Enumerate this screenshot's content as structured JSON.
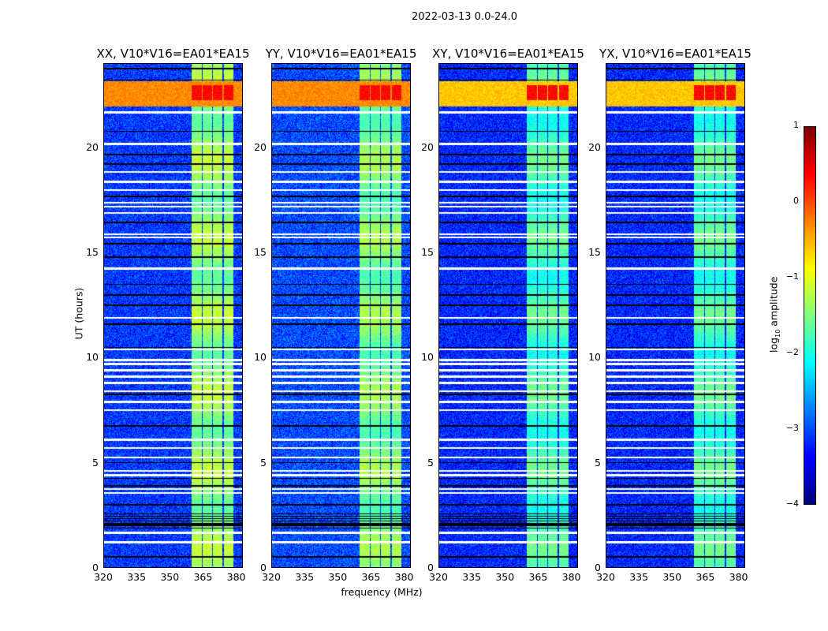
{
  "chart_data": {
    "type": "heatmap",
    "suptitle": "2022-03-13 0.0-24.0",
    "xlabel": "frequency (MHz)",
    "ylabel": "UT (hours)",
    "xlim": [
      320,
      383
    ],
    "ylim": [
      0,
      24
    ],
    "xticks": [
      "320",
      "335",
      "350",
      "365",
      "380"
    ],
    "xtick_values": [
      320,
      335,
      350,
      365,
      380
    ],
    "yticks": [
      "0",
      "5",
      "10",
      "15",
      "20"
    ],
    "ytick_values": [
      0,
      5,
      10,
      15,
      20
    ],
    "panels": [
      {
        "title": "XX, V10*V16=EA01*EA15",
        "background_log_amp": -3.1,
        "channel_log_amp": -1.4,
        "rfi_band_log_amp": -0.3
      },
      {
        "title": "YY, V10*V16=EA01*EA15",
        "background_log_amp": -3.0,
        "channel_log_amp": -1.5,
        "rfi_band_log_amp": -0.3
      },
      {
        "title": "XY, V10*V16=EA01*EA15",
        "background_log_amp": -3.2,
        "channel_log_amp": -1.8,
        "rfi_band_log_amp": -0.6
      },
      {
        "title": "YX, V10*V16=EA01*EA15",
        "background_log_amp": -3.2,
        "channel_log_amp": -1.8,
        "rfi_band_log_amp": -0.6
      }
    ],
    "bright_channel_blocks_mhz": [
      [
        359.7,
        364.3
      ],
      [
        365.0,
        369.3
      ],
      [
        369.6,
        373.9
      ],
      [
        374.6,
        378.9
      ]
    ],
    "rfi_band_hours": [
      22.0,
      23.2
    ],
    "flagged_white_rows_hours": [
      21.7,
      20.2,
      18.86,
      18.4,
      18.0,
      17.4,
      17.2,
      16.9,
      15.9,
      15.75,
      14.25,
      11.9,
      10.4,
      9.9,
      9.7,
      9.4,
      9.1,
      8.8,
      8.4,
      7.9,
      7.5,
      6.1,
      5.7,
      5.25,
      4.6,
      4.4,
      3.75,
      3.55,
      1.65,
      1.2
    ],
    "black_rows_hours": [
      23.8,
      23.25,
      20.8,
      19.7,
      19.25,
      17.7,
      16.45,
      15.45,
      14.8,
      13.5,
      13.0,
      12.5,
      11.6,
      10.5,
      8.25,
      6.75,
      5.0,
      4.25,
      3.9,
      3.0,
      2.05,
      0.5
    ],
    "dense_black_rows_hours": [
      1.8,
      2.6
    ],
    "colorbar": {
      "label": "log₁₀ amplitude",
      "range": [
        -4,
        1
      ],
      "ticks": [
        "1",
        "0",
        "−1",
        "−2",
        "−3",
        "−4"
      ],
      "tick_values": [
        1,
        0,
        -1,
        -2,
        -3,
        -4
      ],
      "colormap": "jet"
    }
  }
}
